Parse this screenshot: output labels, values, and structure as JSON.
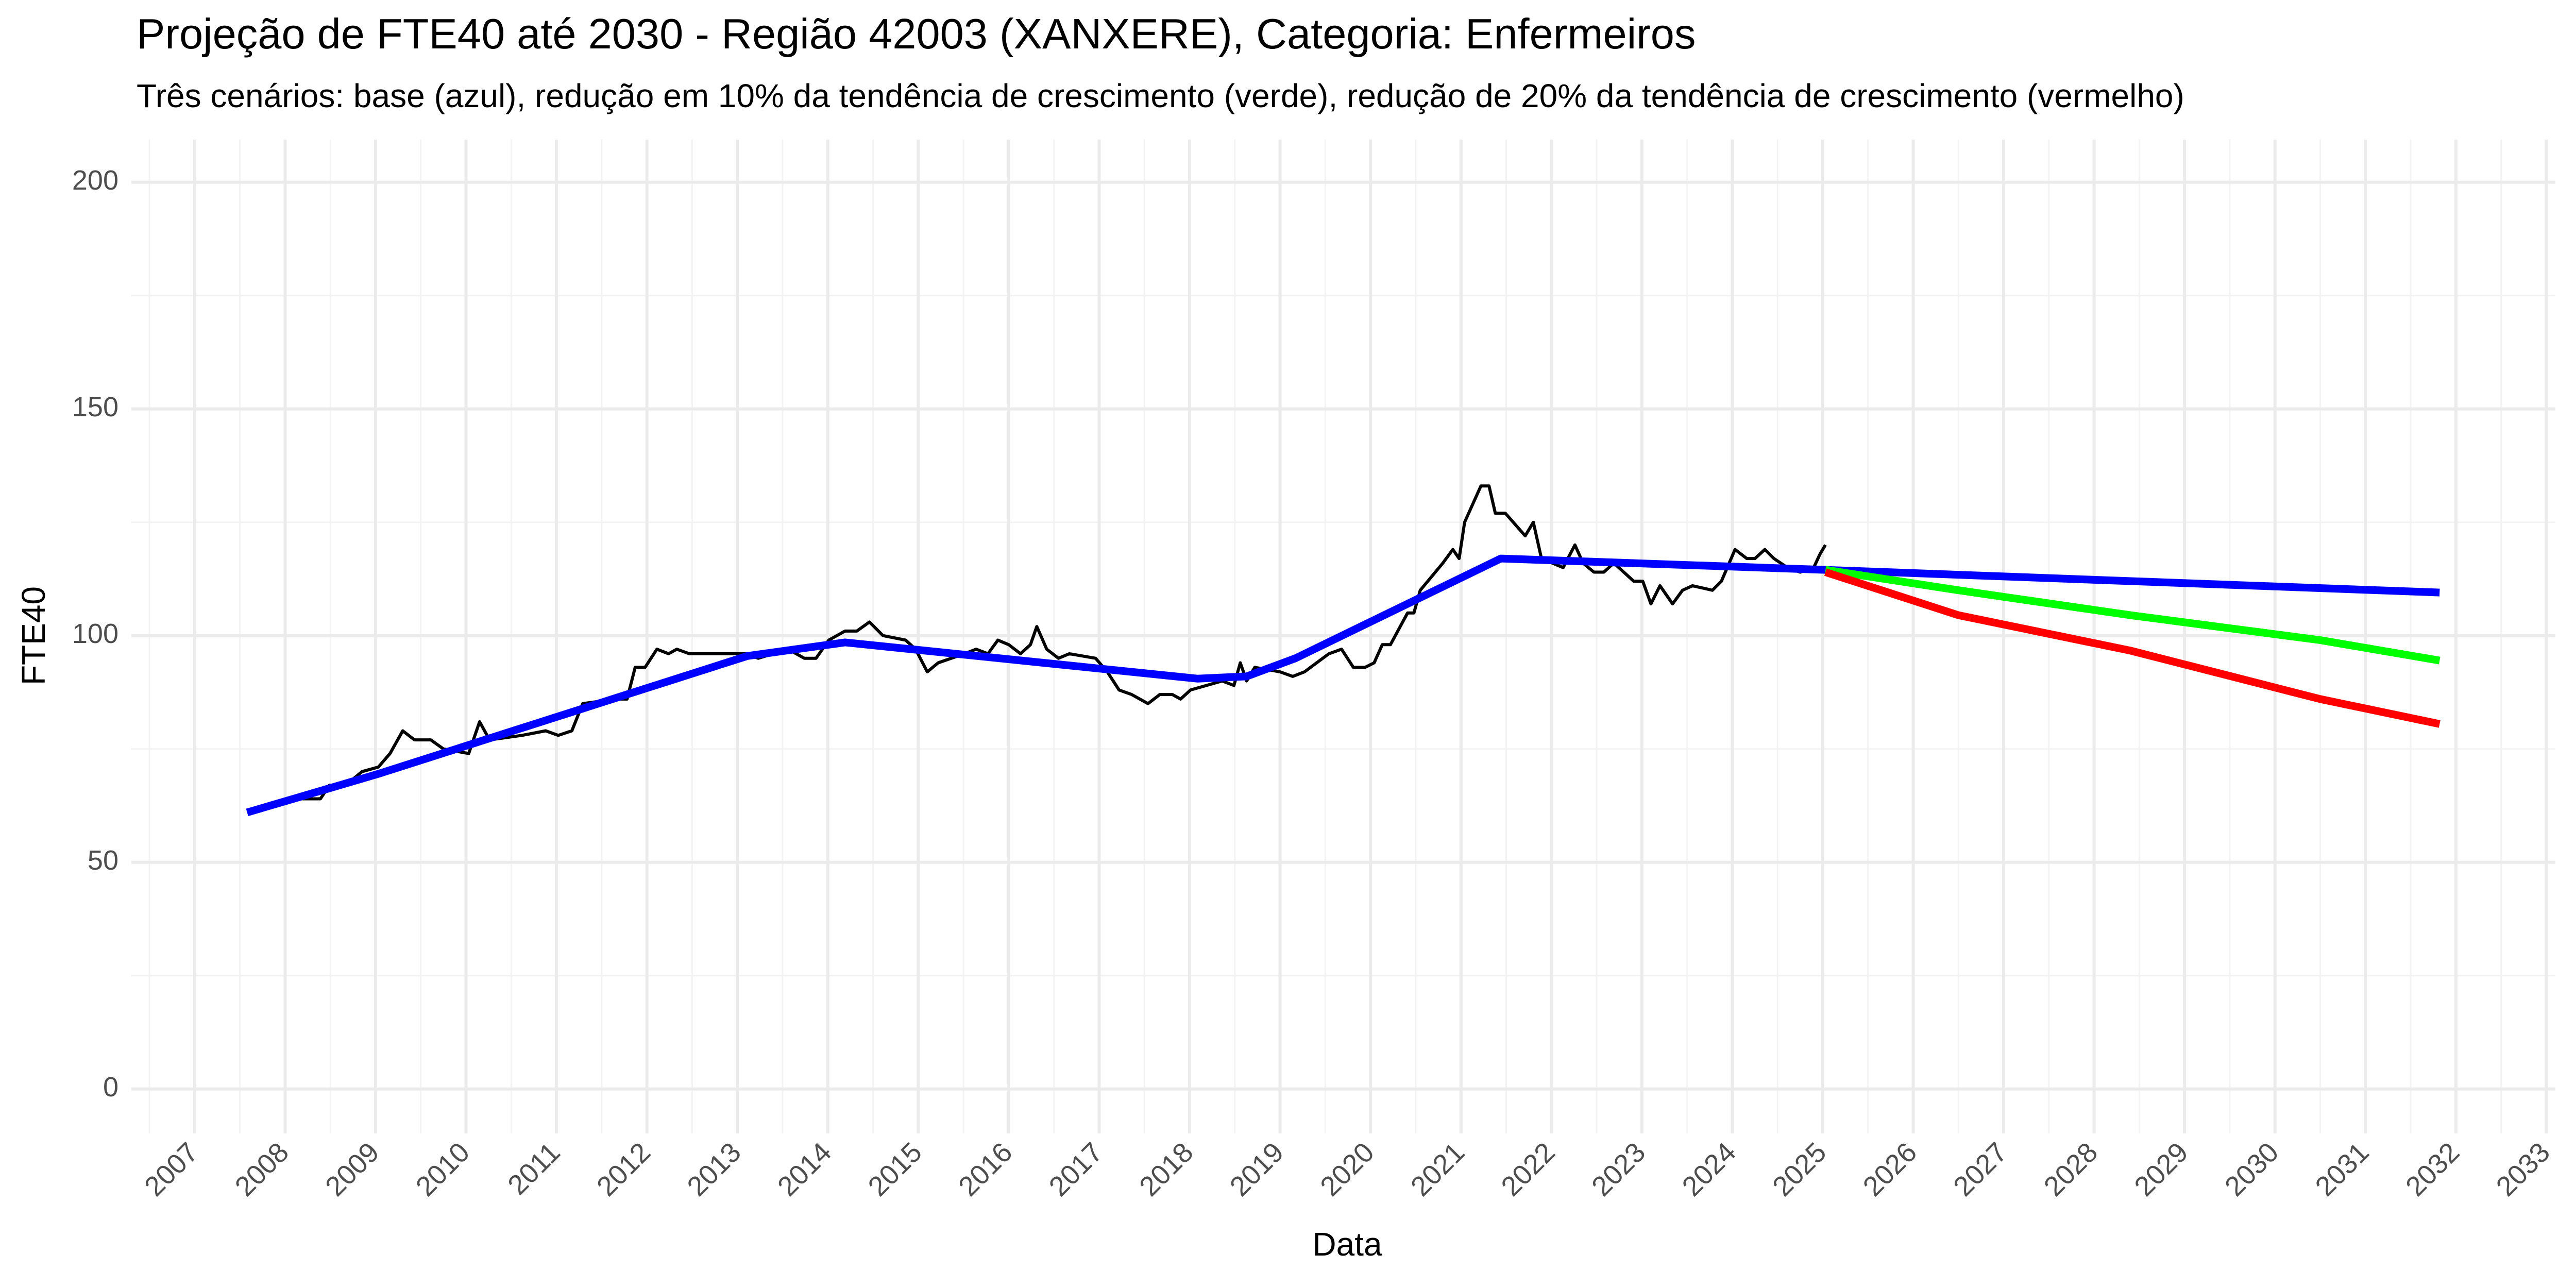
{
  "chart_data": {
    "type": "line",
    "title": "Projeção de FTE40 até 2030 - Região 42003 (XANXERE), Categoria: Enfermeiros",
    "subtitle": "Três cenários: base (azul), redução em 10% da tendência de crescimento (verde), redução de 20% da tendência de crescimento (vermelho)",
    "x_label": "Data",
    "y_label": "FTE40",
    "xlim": [
      2006.3,
      2033.1
    ],
    "ylim": [
      -9.8,
      209.4
    ],
    "xticks": [
      2007,
      2008,
      2009,
      2010,
      2011,
      2012,
      2013,
      2014,
      2015,
      2016,
      2017,
      2018,
      2019,
      2020,
      2021,
      2022,
      2023,
      2024,
      2025,
      2026,
      2027,
      2028,
      2029,
      2030,
      2031,
      2032,
      2033
    ],
    "yticks": [
      0,
      50,
      100,
      150,
      200
    ],
    "xminorticks": [
      2006.5,
      2007.5,
      2008.5,
      2009.5,
      2010.5,
      2011.5,
      2012.5,
      2013.5,
      2014.5,
      2015.5,
      2016.5,
      2017.5,
      2018.5,
      2019.5,
      2020.5,
      2021.5,
      2022.5,
      2023.5,
      2024.5,
      2025.5,
      2026.5,
      2027.5,
      2028.5,
      2029.5,
      2030.5,
      2031.5,
      2032.5
    ],
    "yminorticks": [
      25,
      75,
      125,
      175
    ],
    "grid": true,
    "series": [
      {
        "color": "#000000",
        "width": "thin",
        "x": [
          2007.58,
          2007.85,
          2008.03,
          2008.39,
          2008.49,
          2008.67,
          2008.85,
          2009.03,
          2009.16,
          2009.3,
          2009.43,
          2009.61,
          2009.75,
          2010.03,
          2010.15,
          2010.26,
          2010.62,
          2010.88,
          2011.02,
          2011.17,
          2011.29,
          2011.66,
          2011.78,
          2011.87,
          2011.98,
          2012.11,
          2012.24,
          2012.33,
          2012.47,
          2013.11,
          2013.23,
          2013.56,
          2013.74,
          2013.87,
          2014.01,
          2014.19,
          2014.32,
          2014.46,
          2014.61,
          2014.86,
          2014.97,
          2015.1,
          2015.22,
          2015.51,
          2015.64,
          2015.77,
          2015.88,
          2016.0,
          2016.13,
          2016.24,
          2016.31,
          2016.42,
          2016.55,
          2016.67,
          2016.96,
          2017.09,
          2017.22,
          2017.36,
          2017.54,
          2017.67,
          2017.81,
          2017.9,
          2018.01,
          2018.36,
          2018.49,
          2018.56,
          2018.63,
          2018.72,
          2019.0,
          2019.14,
          2019.27,
          2019.54,
          2019.68,
          2019.81,
          2019.94,
          2020.04,
          2020.13,
          2020.22,
          2020.41,
          2020.48,
          2020.55,
          2020.8,
          2020.91,
          2020.98,
          2021.04,
          2021.22,
          2021.31,
          2021.38,
          2021.49,
          2021.71,
          2021.8,
          2021.89,
          2022.13,
          2022.26,
          2022.35,
          2022.47,
          2022.58,
          2022.69,
          2022.8,
          2022.91,
          2023.01,
          2023.1,
          2023.2,
          2023.34,
          2023.45,
          2023.56,
          2023.78,
          2023.88,
          2024.03,
          2024.16,
          2024.25,
          2024.36,
          2024.46,
          2024.61,
          2024.75,
          2024.9,
          2024.97,
          2025.03
        ],
        "values": [
          61,
          63,
          64,
          64,
          67,
          67,
          70,
          71,
          74,
          79,
          77,
          77,
          75,
          74,
          81,
          77,
          78,
          79,
          78,
          79,
          85,
          86,
          86,
          93,
          93,
          97,
          96,
          97,
          96,
          96,
          95,
          97,
          95,
          95,
          99,
          101,
          101,
          103,
          100,
          99,
          97,
          92,
          94,
          96,
          97,
          96,
          99,
          98,
          96,
          98,
          102,
          97,
          95,
          96,
          95,
          92,
          88,
          87,
          85,
          87,
          87,
          86,
          88,
          90,
          89,
          94,
          90,
          93,
          92,
          91,
          92,
          96,
          97,
          93,
          93,
          94,
          98,
          98,
          105,
          105,
          110,
          116,
          119,
          117,
          125,
          133,
          133,
          127,
          127,
          122,
          125,
          117,
          115,
          120,
          116,
          114,
          114,
          116,
          114,
          112,
          112,
          107,
          111,
          107,
          110,
          111,
          110,
          112,
          119,
          117,
          117,
          119,
          117,
          115,
          114,
          115,
          118,
          120
        ]
      },
      {
        "color": "#0000ff",
        "width": "thick",
        "x": [
          2007.58,
          2009.03,
          2013.11,
          2014.19,
          2018.09,
          2018.63,
          2019.17,
          2021.44,
          2025.03,
          2031.82
        ],
        "values": [
          61,
          69.5,
          95.5,
          98.5,
          90.5,
          91,
          95,
          117,
          114.5,
          109.5
        ]
      },
      {
        "color": "#00ff00",
        "width": "thick",
        "x": [
          2025.03,
          2026.5,
          2028.4,
          2030.5,
          2031.82
        ],
        "values": [
          114.5,
          110,
          104.5,
          99,
          94.5
        ]
      },
      {
        "color": "#ff0000",
        "width": "thick",
        "x": [
          2025.03,
          2026.5,
          2028.4,
          2030.5,
          2031.82
        ],
        "values": [
          114,
          104.5,
          96.7,
          86,
          80.5
        ]
      }
    ]
  }
}
